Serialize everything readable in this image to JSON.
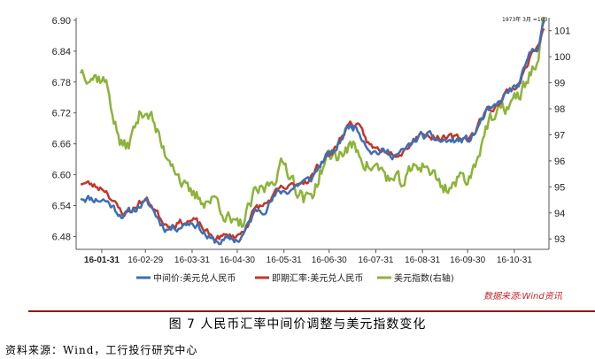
{
  "caption": "图 7 人民币汇率中间价调整与美元指数变化",
  "source": "资料来源：Wind，工行投行研究中心",
  "chart_data": {
    "type": "line",
    "corner_note": "1973年 3月 =100",
    "source_note": "数据来源:Wind资讯",
    "x_ticks": [
      "16-01-31",
      "16-02-29",
      "16-03-31",
      "16-04-30",
      "16-05-31",
      "16-06-30",
      "16-07-31",
      "16-08-31",
      "16-09-30",
      "16-10-31"
    ],
    "y_left_ticks": [
      "6.48",
      "6.54",
      "6.60",
      "6.66",
      "6.72",
      "6.78",
      "6.84",
      "6.90"
    ],
    "y_right_ticks": [
      "93",
      "94",
      "95",
      "96",
      "97",
      "98",
      "99",
      "100",
      "101"
    ],
    "y_left_range": [
      6.455,
      6.905
    ],
    "y_right_range": [
      92.6,
      101.5
    ],
    "colors": {
      "central": "#3d6fb4",
      "spot": "#c0382b",
      "dxy": "#8db33a"
    },
    "series": [
      {
        "name": "中间价:美元兑人民币",
        "axis": "left",
        "points": [
          [
            "2016-01-17",
            6.557
          ],
          [
            "2016-01-31",
            6.552
          ],
          [
            "2016-02-15",
            6.523
          ],
          [
            "2016-02-29",
            6.544
          ],
          [
            "2016-03-15",
            6.496
          ],
          [
            "2016-03-31",
            6.508
          ],
          [
            "2016-04-15",
            6.47
          ],
          [
            "2016-04-30",
            6.474
          ],
          [
            "2016-05-15",
            6.533
          ],
          [
            "2016-05-31",
            6.568
          ],
          [
            "2016-06-15",
            6.587
          ],
          [
            "2016-06-30",
            6.636
          ],
          [
            "2016-07-15",
            6.696
          ],
          [
            "2016-07-31",
            6.645
          ],
          [
            "2016-08-15",
            6.64
          ],
          [
            "2016-08-31",
            6.675
          ],
          [
            "2016-09-15",
            6.665
          ],
          [
            "2016-09-30",
            6.667
          ],
          [
            "2016-10-15",
            6.724
          ],
          [
            "2016-10-31",
            6.767
          ],
          [
            "2016-11-15",
            6.85
          ],
          [
            "2016-11-20",
            6.89
          ]
        ]
      },
      {
        "name": "即期汇率:美元兑人民币",
        "axis": "left",
        "points": [
          [
            "2016-01-17",
            6.585
          ],
          [
            "2016-01-31",
            6.575
          ],
          [
            "2016-02-15",
            6.525
          ],
          [
            "2016-02-29",
            6.55
          ],
          [
            "2016-03-15",
            6.505
          ],
          [
            "2016-03-31",
            6.51
          ],
          [
            "2016-04-15",
            6.478
          ],
          [
            "2016-04-30",
            6.482
          ],
          [
            "2016-05-15",
            6.538
          ],
          [
            "2016-05-31",
            6.572
          ],
          [
            "2016-06-15",
            6.59
          ],
          [
            "2016-06-30",
            6.64
          ],
          [
            "2016-07-15",
            6.7
          ],
          [
            "2016-07-31",
            6.65
          ],
          [
            "2016-08-15",
            6.645
          ],
          [
            "2016-08-31",
            6.68
          ],
          [
            "2016-09-15",
            6.67
          ],
          [
            "2016-09-30",
            6.672
          ],
          [
            "2016-10-15",
            6.728
          ],
          [
            "2016-10-31",
            6.77
          ],
          [
            "2016-11-15",
            6.845
          ],
          [
            "2016-11-20",
            6.88
          ]
        ]
      },
      {
        "name": "美元指数(右轴)",
        "axis": "right",
        "points": [
          [
            "2016-01-17",
            99.5
          ],
          [
            "2016-01-31",
            99.2
          ],
          [
            "2016-02-15",
            96.5
          ],
          [
            "2016-02-29",
            98.0
          ],
          [
            "2016-03-15",
            96.2
          ],
          [
            "2016-03-31",
            94.6
          ],
          [
            "2016-04-15",
            94.5
          ],
          [
            "2016-04-30",
            93.4
          ],
          [
            "2016-05-15",
            94.8
          ],
          [
            "2016-05-31",
            95.8
          ],
          [
            "2016-06-15",
            94.5
          ],
          [
            "2016-06-30",
            96.1
          ],
          [
            "2016-07-15",
            96.5
          ],
          [
            "2016-07-31",
            95.7
          ],
          [
            "2016-08-15",
            95.1
          ],
          [
            "2016-08-31",
            95.9
          ],
          [
            "2016-09-15",
            95.0
          ],
          [
            "2016-09-30",
            95.4
          ],
          [
            "2016-10-15",
            97.5
          ],
          [
            "2016-10-31",
            98.3
          ],
          [
            "2016-11-15",
            99.7
          ],
          [
            "2016-11-20",
            101.2
          ]
        ]
      }
    ]
  }
}
